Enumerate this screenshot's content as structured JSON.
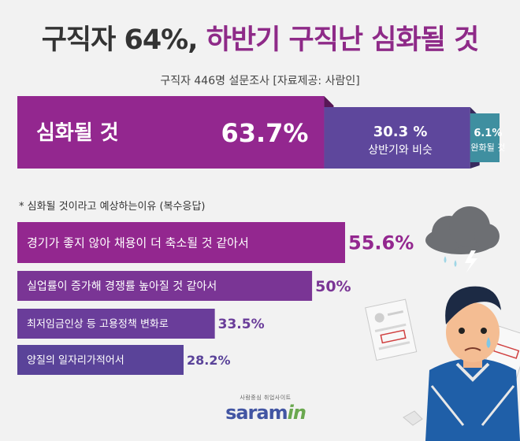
{
  "header": {
    "title_part1": "구직자 64%,",
    "title_part2": "하반기 구직난 심화될 것",
    "subtitle": "구직자 446명 설문조사 [자료제공: 사람인]"
  },
  "note": "* 심화될 것이라고 예상하는이유 (복수응답)",
  "chart_data": [
    {
      "type": "bar",
      "orientation": "horizontal-stacked",
      "unit": "%",
      "segments": [
        {
          "label": "심화될 것",
          "value": 63.7,
          "value_label": "63.7%",
          "color": "#93278f"
        },
        {
          "label": "상반기와 비슷",
          "value": 30.3,
          "value_label": "30.3 %",
          "color": "#5e479c"
        },
        {
          "label": "완화될 것",
          "value": 6.1,
          "value_label": "6.1%",
          "color": "#3f8fa0"
        }
      ]
    },
    {
      "type": "bar",
      "orientation": "horizontal",
      "unit": "%",
      "xlim": [
        0,
        100
      ],
      "categories": [
        "경기가 좋지 않아 채용이 더 축소될 것 같아서",
        "실업률이 증가해 경쟁률 높아질 것 같아서",
        "최저임금인상 등 고용정책 변화로",
        "양질의 일자리가적어서"
      ],
      "values": [
        55.6,
        50,
        33.5,
        28.2
      ],
      "value_labels": [
        "55.6%",
        "50%",
        "33.5%",
        "28.2%"
      ],
      "colors": [
        "#93278f",
        "#7a3595",
        "#6a3d9a",
        "#5a4399"
      ]
    }
  ],
  "logo": {
    "tagline": "사람중심 취업사이트",
    "brand": "saram",
    "brand_suffix": "in"
  }
}
